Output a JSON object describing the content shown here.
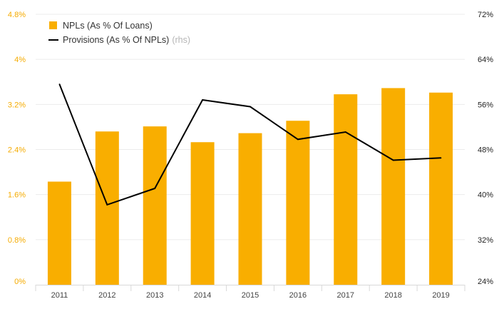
{
  "chart_data": {
    "type": "bar+line",
    "title": "",
    "categories": [
      "2011",
      "2012",
      "2013",
      "2014",
      "2015",
      "2016",
      "2017",
      "2018",
      "2019"
    ],
    "series": [
      {
        "name": "NPLs (As % Of Loans)",
        "type": "bar",
        "axis": "left",
        "color": "#f9ae00",
        "values": [
          1.83,
          2.72,
          2.81,
          2.53,
          2.69,
          2.91,
          3.38,
          3.49,
          3.41
        ]
      },
      {
        "name": "Provisions (As % Of NPLs)",
        "note": "(rhs)",
        "type": "line",
        "axis": "right",
        "color": "#000000",
        "values": [
          59.6,
          38.2,
          41.1,
          56.8,
          55.6,
          49.8,
          51.1,
          46.1,
          46.5
        ]
      }
    ],
    "y_left": {
      "ylim": [
        0,
        4.8
      ],
      "ticks": [
        0,
        0.8,
        1.6,
        2.4,
        3.2,
        4.0,
        4.8
      ],
      "tick_labels": [
        "0%",
        "0.8%",
        "1.6%",
        "2.4%",
        "3.2%",
        "4%",
        "4.8%"
      ],
      "color": "#f5ab00"
    },
    "y_right": {
      "ylim": [
        24,
        72
      ],
      "ticks": [
        24,
        32,
        40,
        48,
        56,
        64,
        72
      ],
      "tick_labels": [
        "24%",
        "32%",
        "40%",
        "48%",
        "56%",
        "64%",
        "72%"
      ],
      "color": "#222222"
    },
    "grid": true,
    "legend_position": "top-left"
  }
}
